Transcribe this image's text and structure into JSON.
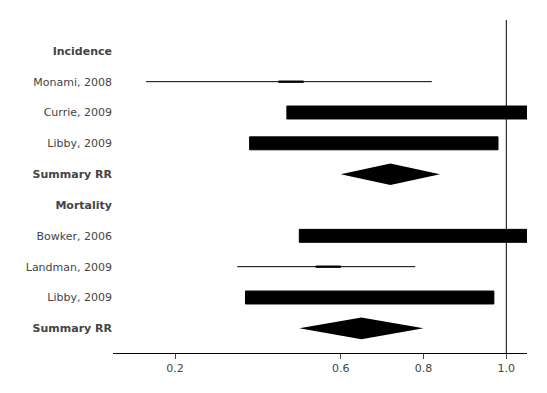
{
  "chart_data": {
    "type": "forest",
    "color": "#000000",
    "xlim": [
      0.05,
      1.05
    ],
    "xticks": [
      0.2,
      0.6,
      0.8,
      {
        "value": 1,
        "label": "1.0"
      }
    ],
    "reference_line": 1,
    "grid": false,
    "groups": [
      {
        "name": "Incidence",
        "studies": [
          {
            "label": "Monami, 2008",
            "center": 0.48,
            "ci_low": 0.13,
            "ci_high": 0.82,
            "weight": 0.5,
            "marker": "square"
          },
          {
            "label": "Currie, 2009",
            "center": 0.77,
            "ci_low": 0.73,
            "ci_high": 0.82,
            "weight": 5.0,
            "marker": "square"
          },
          {
            "label": "Libby, 2009",
            "center": 0.68,
            "ci_low": 0.63,
            "ci_high": 0.73,
            "weight": 5.0,
            "marker": "square"
          },
          {
            "label": "Summary RR",
            "center": 0.72,
            "ci_low": 0.6,
            "ci_high": 0.84,
            "marker": "diamond"
          }
        ]
      },
      {
        "name": "Mortality",
        "studies": [
          {
            "label": "Bowker, 2006",
            "center": 0.8,
            "ci_low": 0.75,
            "ci_high": 0.86,
            "weight": 5.0,
            "marker": "square"
          },
          {
            "label": "Landman, 2009",
            "center": 0.57,
            "ci_low": 0.35,
            "ci_high": 0.78,
            "weight": 0.5,
            "marker": "square"
          },
          {
            "label": "Libby, 2009",
            "center": 0.67,
            "ci_low": 0.6,
            "ci_high": 0.74,
            "weight": 5.0,
            "marker": "square"
          },
          {
            "label": "Summary RR",
            "center": 0.65,
            "ci_low": 0.5,
            "ci_high": 0.8,
            "marker": "diamond"
          }
        ]
      }
    ]
  }
}
